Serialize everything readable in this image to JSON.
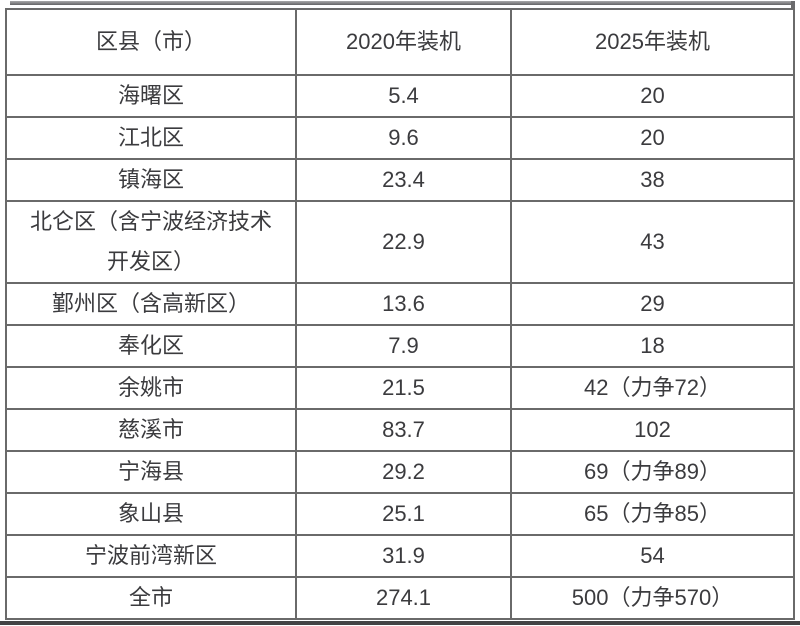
{
  "page": {
    "background_color": "#ffffff",
    "text_color": "#3b3b3e",
    "grid_border_color": "#6a6a6a",
    "top_bar_color": "#8c8c8e",
    "bottom_bar_color": "#434345"
  },
  "table": {
    "columns": [
      "区县（市）",
      "2020年装机",
      "2025年装机"
    ],
    "rows": [
      {
        "region": "海曙区",
        "y2020": "5.4",
        "y2025": "20"
      },
      {
        "region": "江北区",
        "y2020": "9.6",
        "y2025": "20"
      },
      {
        "region": "镇海区",
        "y2020": "23.4",
        "y2025": "38"
      },
      {
        "region": "北仑区（含宁波经济技术开发区）",
        "y2020": "22.9",
        "y2025": "43"
      },
      {
        "region": "鄞州区（含高新区）",
        "y2020": "13.6",
        "y2025": "29"
      },
      {
        "region": "奉化区",
        "y2020": "7.9",
        "y2025": "18"
      },
      {
        "region": "余姚市",
        "y2020": "21.5",
        "y2025": "42（力争72）"
      },
      {
        "region": "慈溪市",
        "y2020": "83.7",
        "y2025": "102"
      },
      {
        "region": "宁海县",
        "y2020": "29.2",
        "y2025": "69（力争89）"
      },
      {
        "region": "象山县",
        "y2020": "25.1",
        "y2025": "65（力争85）"
      },
      {
        "region": "宁波前湾新区",
        "y2020": "31.9",
        "y2025": "54"
      },
      {
        "region": "全市",
        "y2020": "274.1",
        "y2025": "500（力争570）"
      }
    ]
  }
}
